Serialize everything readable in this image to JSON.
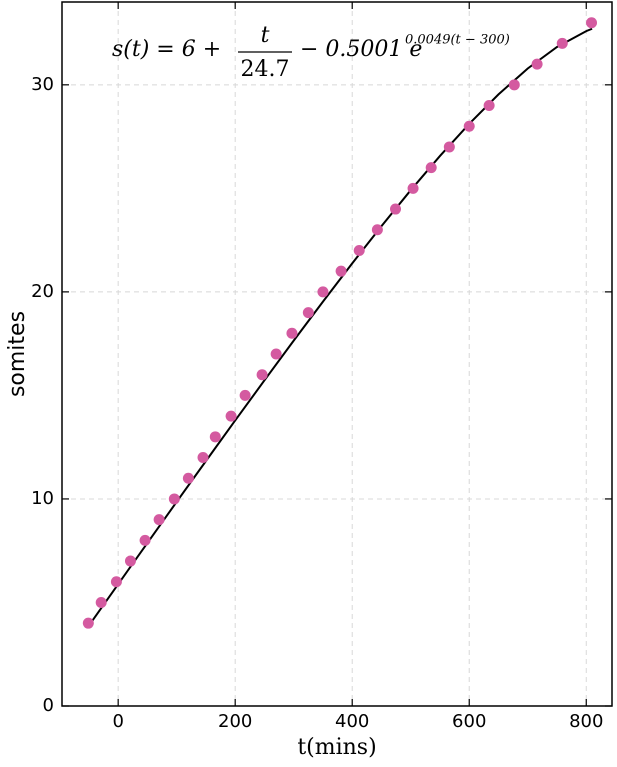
{
  "chart_data": {
    "type": "scatter",
    "y_label": "somites",
    "x_label": "t(mins)",
    "annotation": {
      "lhs": "s(t) = 6 +",
      "numerator": "t",
      "denominator": "24.7",
      "rest": "− 0.5001 e",
      "exponent": "0.0049(t − 300)"
    },
    "xlim": [
      -96,
      844
    ],
    "ylim": [
      0,
      34
    ],
    "xticks": [
      0,
      200,
      400,
      600,
      800
    ],
    "yticks": [
      0,
      10,
      20,
      30
    ],
    "grid": true,
    "points": {
      "color": "#d45aa0",
      "x": [
        -51,
        -29,
        -3,
        21,
        46,
        70,
        96,
        120,
        145,
        166,
        193,
        217,
        246,
        270,
        297,
        325,
        350,
        381,
        412,
        443,
        474,
        504,
        535,
        566,
        600,
        634,
        677,
        716,
        759,
        809
      ],
      "values": [
        4,
        5,
        6,
        7,
        8,
        9,
        10,
        11,
        12,
        13,
        14,
        15,
        16,
        17,
        18,
        19,
        20,
        21,
        22,
        23,
        24,
        25,
        26,
        27,
        28,
        29,
        30,
        31,
        32,
        33
      ]
    },
    "curve": {
      "color": "#000000",
      "x": [
        -50,
        0,
        50,
        100,
        150,
        200,
        250,
        300,
        350,
        400,
        450,
        500,
        550,
        600,
        650,
        700,
        750,
        800,
        810
      ],
      "values": [
        3.886,
        5.885,
        7.877,
        9.861,
        11.833,
        13.791,
        15.73,
        17.646,
        19.531,
        21.378,
        23.176,
        24.911,
        26.565,
        28.116,
        29.537,
        30.79,
        31.828,
        32.594,
        32.708
      ]
    }
  }
}
